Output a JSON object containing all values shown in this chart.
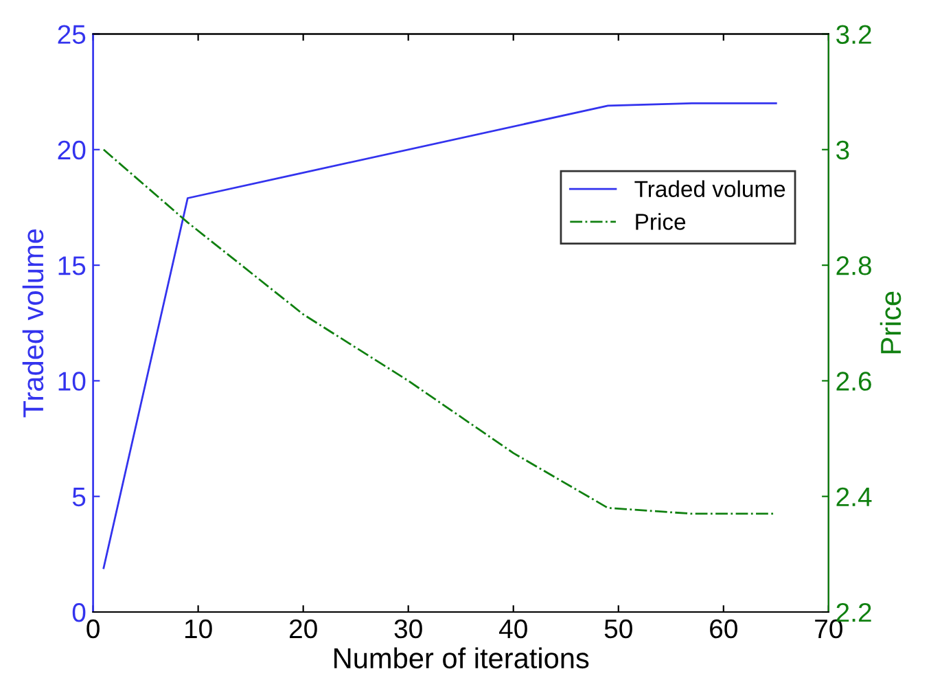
{
  "chart_data": {
    "type": "line",
    "xlabel": "Number of iterations",
    "ylabel": "Traded volume",
    "y2label": "Price",
    "xlim": [
      0,
      70
    ],
    "xticks": [
      0,
      10,
      20,
      30,
      40,
      50,
      60,
      70
    ],
    "ylim": [
      0,
      25
    ],
    "yticks": [
      0,
      5,
      10,
      15,
      20,
      25
    ],
    "y2lim": [
      2.2,
      3.2
    ],
    "y2ticks": [
      2.2,
      2.4,
      2.6,
      2.8,
      3,
      3.2
    ],
    "grid": false,
    "legend": "right",
    "marker": "none",
    "series": [
      {
        "name": "Traded volume",
        "color": "#3333ee",
        "line_style": "solid",
        "x": [
          1,
          9,
          49,
          57,
          65
        ],
        "values": [
          1.9,
          17.9,
          21.9,
          22,
          22
        ]
      },
      {
        "name": "Price",
        "color": "#108010",
        "line_style": "dashdot",
        "axis": "y2",
        "x": [
          1,
          9,
          20,
          30,
          40,
          49,
          57,
          65
        ],
        "values": [
          3.0,
          2.874,
          2.715,
          2.6,
          2.475,
          2.38,
          2.37,
          2.37
        ]
      }
    ]
  }
}
